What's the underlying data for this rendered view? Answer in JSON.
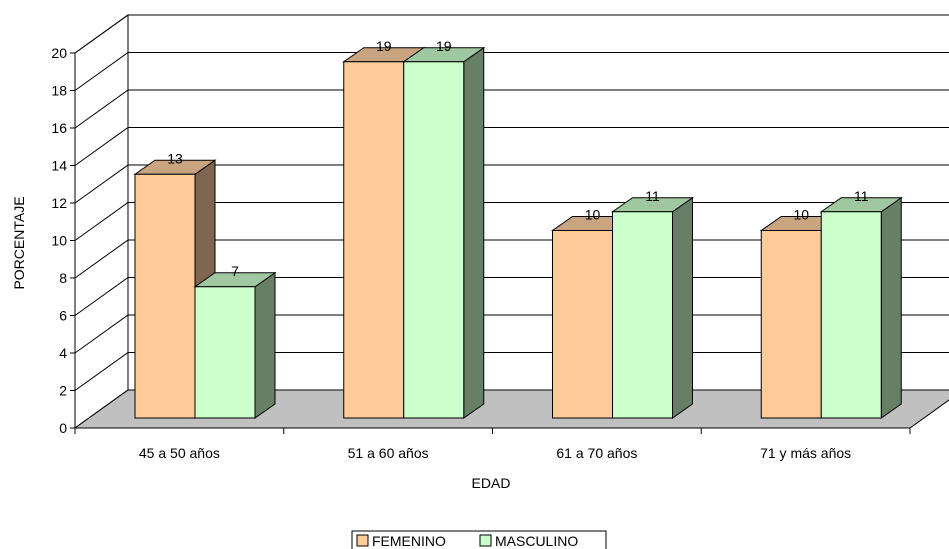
{
  "chart_data": {
    "type": "bar",
    "style": "3d-clustered-column",
    "categories": [
      "45 a 50 años",
      "51 a 60 años",
      "61 a 70 años",
      "71 y más años"
    ],
    "series": [
      {
        "name": "FEMENINO",
        "values": [
          13,
          19,
          10,
          10
        ],
        "color": "#FFCC99"
      },
      {
        "name": "MASCULINO",
        "values": [
          7,
          19,
          11,
          11
        ],
        "color": "#CCFFCC"
      }
    ],
    "xlabel": "EDAD",
    "ylabel": "PORCENTAJE",
    "ylim": [
      0,
      20
    ],
    "yticks": [
      0,
      2,
      4,
      6,
      8,
      10,
      12,
      14,
      16,
      18,
      20
    ],
    "grid": true,
    "legend_position": "bottom",
    "data_labels": true
  },
  "colors": {
    "floor": "#C0C0C0",
    "femenino_side": "#7F6650",
    "masculino_side": "#667F66"
  }
}
